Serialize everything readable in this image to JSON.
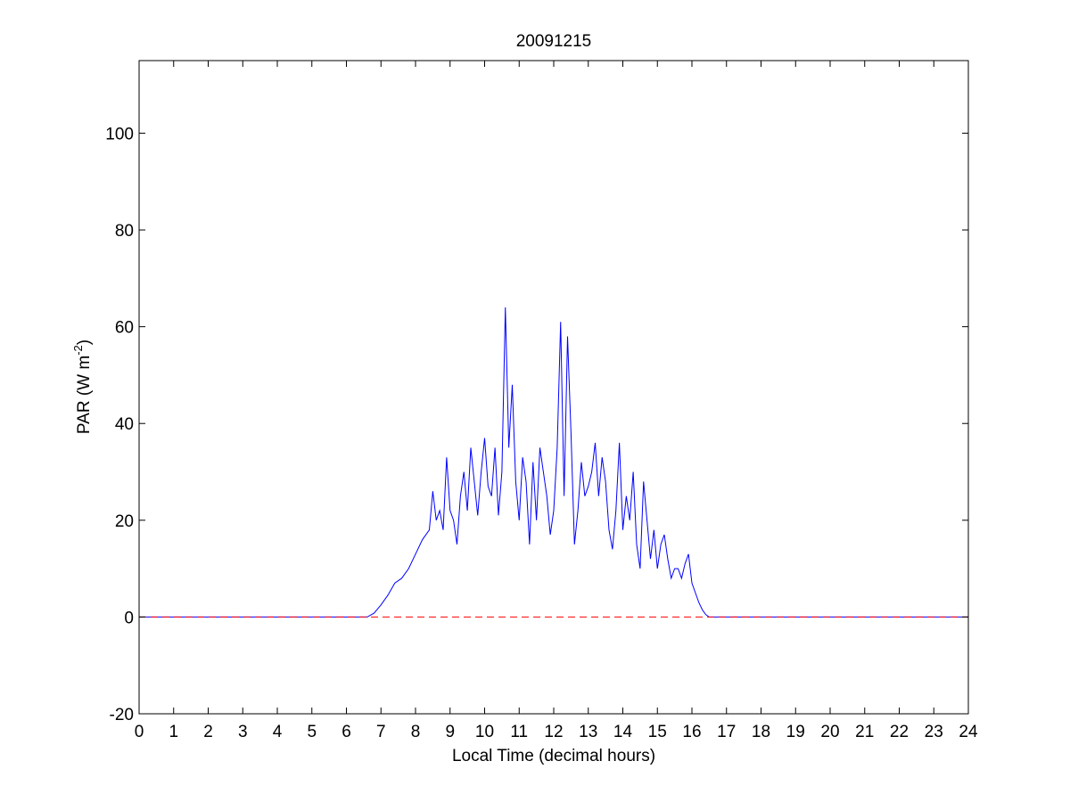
{
  "chart_data": {
    "type": "line",
    "title": "20091215",
    "xlabel": "Local Time (decimal hours)",
    "ylabel": {
      "text": "PAR (W m",
      "superscript": "-2",
      "suffix": ")"
    },
    "xlim": [
      0,
      24
    ],
    "ylim": [
      -20,
      115
    ],
    "x_ticks": [
      0,
      1,
      2,
      3,
      4,
      5,
      6,
      7,
      8,
      9,
      10,
      11,
      12,
      13,
      14,
      15,
      16,
      17,
      18,
      19,
      20,
      21,
      22,
      23,
      24
    ],
    "y_ticks": [
      -20,
      0,
      20,
      40,
      60,
      80,
      100
    ],
    "grid": false,
    "legend": "none",
    "colors": {
      "series": "#0000ff",
      "reference": "#ff0000",
      "axes": "#000000"
    },
    "series": [
      {
        "style": "solid",
        "x": [
          0,
          6.6,
          6.8,
          7.0,
          7.2,
          7.4,
          7.6,
          7.8,
          8.0,
          8.2,
          8.4,
          8.5,
          8.6,
          8.7,
          8.8,
          8.9,
          9.0,
          9.1,
          9.2,
          9.3,
          9.4,
          9.5,
          9.6,
          9.7,
          9.8,
          9.9,
          10.0,
          10.1,
          10.2,
          10.3,
          10.4,
          10.5,
          10.6,
          10.7,
          10.8,
          10.9,
          11.0,
          11.1,
          11.2,
          11.3,
          11.4,
          11.5,
          11.6,
          11.7,
          11.8,
          11.9,
          12.0,
          12.1,
          12.2,
          12.3,
          12.4,
          12.5,
          12.6,
          12.7,
          12.8,
          12.9,
          13.0,
          13.1,
          13.2,
          13.3,
          13.4,
          13.5,
          13.6,
          13.7,
          13.8,
          13.9,
          14.0,
          14.1,
          14.2,
          14.3,
          14.4,
          14.5,
          14.6,
          14.7,
          14.8,
          14.9,
          15.0,
          15.1,
          15.2,
          15.3,
          15.4,
          15.5,
          15.6,
          15.7,
          15.8,
          15.9,
          16.0,
          16.1,
          16.2,
          16.3,
          16.4,
          16.5,
          16.6,
          16.8,
          17.0,
          17.2,
          24
        ],
        "y": [
          0,
          0,
          0.8,
          2.5,
          4.5,
          7,
          8,
          10,
          13,
          16,
          18,
          26,
          20,
          22,
          18,
          33,
          22,
          20,
          15,
          25,
          30,
          22,
          35,
          28,
          21,
          30,
          37,
          27,
          25,
          35,
          21,
          30,
          64,
          35,
          48,
          28,
          20,
          33,
          28,
          15,
          32,
          20,
          35,
          30,
          25,
          17,
          22,
          35,
          61,
          25,
          58,
          38,
          15,
          22,
          32,
          25,
          27,
          30,
          36,
          25,
          33,
          28,
          18,
          14,
          22,
          36,
          18,
          25,
          20,
          30,
          15,
          10,
          28,
          20,
          12,
          18,
          10,
          15,
          17,
          12,
          8,
          10,
          10,
          8,
          11,
          13,
          7,
          5,
          3,
          1.5,
          0.5,
          0,
          0,
          0,
          0,
          0,
          0
        ]
      },
      {
        "style": "dashed",
        "x": [
          0,
          24
        ],
        "y": [
          0,
          0
        ]
      }
    ]
  }
}
